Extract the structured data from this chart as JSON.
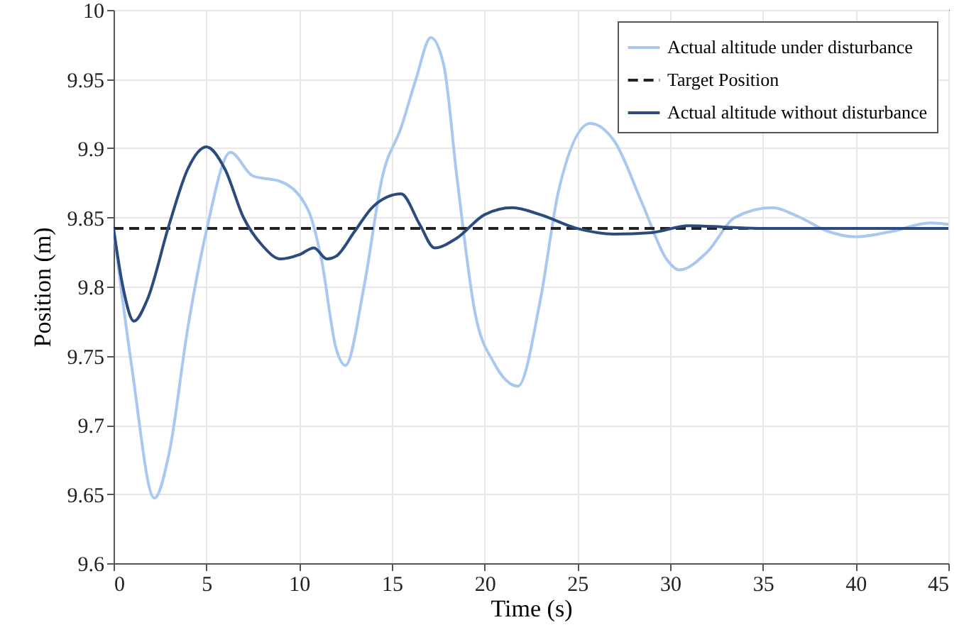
{
  "chart_data": {
    "type": "line",
    "xlabel": "Time (s)",
    "ylabel": "Position (m)",
    "xlim": [
      0,
      45
    ],
    "xticks": [
      0,
      5,
      10,
      15,
      20,
      25,
      30,
      35,
      40,
      45
    ],
    "ylim": [
      9.6,
      10
    ],
    "yticks": [
      9.6,
      9.65,
      9.7,
      9.75,
      9.8,
      9.85,
      9.9,
      9.95,
      10
    ],
    "grid": true,
    "legend": "top right",
    "series": [
      {
        "name": "Actual altitude under disturbance",
        "color": "#a9c8f0",
        "line_style": "solid",
        "x": [
          0,
          1,
          2.2,
          3,
          4,
          5,
          6.3,
          7.5,
          9,
          10.5,
          11.2,
          12,
          12.5,
          13.5,
          14.5,
          15.5,
          16.3,
          17.1,
          17.8,
          18.5,
          19.5,
          20.5,
          21.8,
          23,
          24,
          25.7,
          27,
          28.5,
          29.8,
          30.5,
          32,
          33.5,
          35.5,
          37,
          38.5,
          40,
          42,
          44,
          45
        ],
        "values": [
          9.842,
          9.74,
          9.647,
          9.68,
          9.77,
          9.84,
          9.897,
          9.88,
          9.876,
          9.855,
          9.82,
          9.755,
          9.743,
          9.8,
          9.88,
          9.915,
          9.95,
          9.98,
          9.96,
          9.88,
          9.78,
          9.745,
          9.728,
          9.79,
          9.87,
          9.918,
          9.905,
          9.86,
          9.82,
          9.812,
          9.825,
          9.85,
          9.857,
          9.85,
          9.84,
          9.836,
          9.84,
          9.846,
          9.845
        ]
      },
      {
        "name": "Target Position",
        "color": "#222222",
        "line_style": "dashed",
        "x": [
          0,
          45
        ],
        "values": [
          9.842,
          9.842
        ]
      },
      {
        "name": "Actual altitude without disturbance",
        "color": "#2b4a7e",
        "line_style": "solid",
        "x": [
          0,
          0.5,
          1.1,
          1.8,
          3,
          4,
          5,
          6,
          7,
          8,
          9,
          10,
          10.8,
          11.5,
          12,
          13,
          14,
          15.5,
          16.5,
          17.3,
          18.5,
          20,
          21.5,
          23,
          25,
          27,
          29,
          31,
          33,
          35,
          45
        ],
        "values": [
          9.842,
          9.8,
          9.775,
          9.79,
          9.845,
          9.885,
          9.901,
          9.885,
          9.85,
          9.83,
          9.82,
          9.823,
          9.828,
          9.82,
          9.822,
          9.84,
          9.858,
          9.867,
          9.845,
          9.828,
          9.835,
          9.852,
          9.857,
          9.852,
          9.842,
          9.838,
          9.839,
          9.844,
          9.843,
          9.842,
          9.842
        ]
      }
    ]
  }
}
